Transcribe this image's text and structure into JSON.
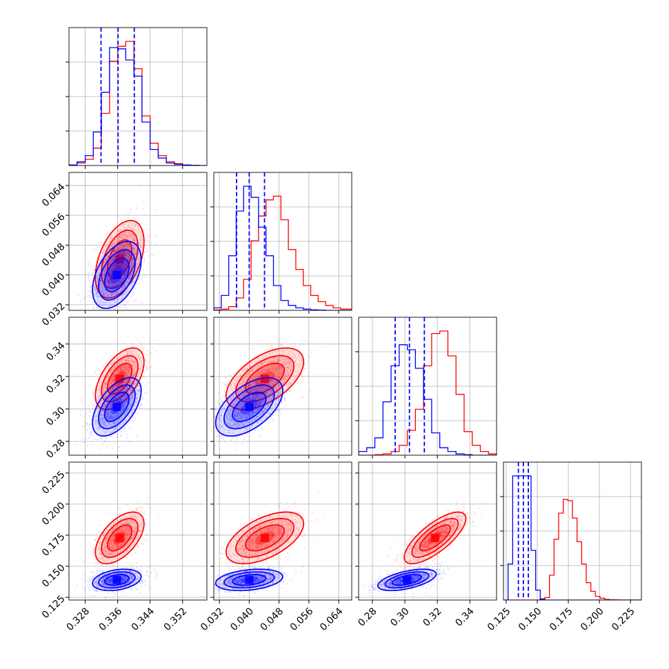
{
  "chart_data": {
    "type": "corner",
    "grid": true,
    "colors": {
      "series_a": "#ff0000",
      "series_b": "#0000ff",
      "grid": "#b0b0b0",
      "axis": "#000000"
    },
    "series": [
      {
        "color": "#ff0000"
      },
      {
        "color": "#0000ff"
      }
    ],
    "parameters": [
      {
        "range": [
          0.324,
          0.358
        ],
        "ticks": [
          "0.328",
          "0.336",
          "0.344",
          "0.352"
        ],
        "quantiles_series_b": [
          0.3319,
          0.3361,
          0.3401
        ]
      },
      {
        "range": [
          0.0305,
          0.0675
        ],
        "ticks": [
          "0.032",
          "0.040",
          "0.048",
          "0.056",
          "0.064"
        ],
        "quantiles_series_b": [
          0.0366,
          0.04,
          0.0441
        ]
      },
      {
        "range": [
          0.2715,
          0.3565
        ],
        "ticks": [
          "0.28",
          "0.30",
          "0.32",
          "0.34"
        ],
        "quantiles_series_b": [
          0.294,
          0.3028,
          0.312
        ]
      },
      {
        "range": [
          0.1228,
          0.2338
        ],
        "ticks": [
          "0.125",
          "0.150",
          "0.175",
          "0.200",
          "0.225"
        ],
        "quantiles_series_b": [
          0.1348,
          0.1388,
          0.1428
        ]
      }
    ],
    "histograms": [
      {
        "bins": [
          0.324,
          0.326,
          0.328,
          0.33,
          0.332,
          0.334,
          0.336,
          0.338,
          0.34,
          0.342,
          0.344,
          0.346,
          0.348,
          0.35,
          0.352,
          0.354,
          0.356,
          0.358
        ],
        "series_a": [
          0.5,
          2,
          5,
          14,
          42,
          84,
          96,
          100,
          78,
          40,
          18,
          8,
          3,
          1.5,
          0.5,
          0.2,
          0
        ],
        "series_b": [
          0.5,
          3,
          8,
          27,
          59,
          95,
          94,
          85,
          72,
          35,
          13,
          6,
          2,
          1,
          0.5,
          0.2,
          0
        ]
      },
      {
        "bins": [
          0.0305,
          0.0325,
          0.0345,
          0.0365,
          0.0385,
          0.0405,
          0.0425,
          0.0445,
          0.0465,
          0.0485,
          0.0505,
          0.0525,
          0.0545,
          0.0565,
          0.0585,
          0.0605,
          0.0625,
          0.0645,
          0.0675
        ],
        "series_a": [
          0.3,
          1,
          3,
          10,
          25,
          56,
          76,
          89,
          92,
          73,
          49,
          33,
          20,
          12,
          7,
          4,
          2,
          1
        ],
        "series_b": [
          2,
          12,
          44,
          80,
          100,
          91,
          67,
          44,
          20,
          8,
          4,
          2,
          1,
          0.4,
          0.2,
          0,
          0,
          0
        ]
      },
      {
        "bins": [
          0.2715,
          0.2765,
          0.2815,
          0.2865,
          0.2915,
          0.2965,
          0.3015,
          0.3065,
          0.3115,
          0.3165,
          0.3215,
          0.3265,
          0.3315,
          0.3365,
          0.3415,
          0.3465,
          0.3515,
          0.3565
        ],
        "series_a": [
          0,
          0,
          0.4,
          1,
          3,
          8,
          20,
          37,
          72,
          98,
          100,
          80,
          49,
          19,
          8,
          3,
          1
        ],
        "series_b": [
          3,
          6,
          14,
          43,
          72,
          89,
          85,
          70,
          45,
          18,
          6,
          3,
          1,
          0.4,
          0,
          0,
          0
        ]
      },
      {
        "bins": [
          0.1228,
          0.1265,
          0.1302,
          0.1339,
          0.1376,
          0.1413,
          0.145,
          0.1487,
          0.1524,
          0.1561,
          0.1598,
          0.1635,
          0.1672,
          0.1709,
          0.1746,
          0.1783,
          0.182,
          0.1857,
          0.1894,
          0.1931,
          0.1968,
          0.2005,
          0.2042,
          0.2079,
          0.2116,
          0.2153,
          0.2338
        ],
        "series_a": [
          0,
          0,
          0,
          0,
          0,
          0,
          0,
          0,
          1,
          2,
          20,
          49,
          70,
          81,
          80,
          66,
          47,
          29,
          14,
          7,
          3,
          1.5,
          0.5,
          0.2,
          0.1,
          0
        ],
        "series_b": [
          0,
          29,
          100,
          100,
          100,
          100,
          40,
          8,
          0.5,
          0,
          0,
          0,
          0,
          0,
          0,
          0,
          0,
          0,
          0,
          0,
          0,
          0,
          0,
          0,
          0,
          0
        ]
      }
    ],
    "posteriors": {
      "series_a": {
        "mean": [
          0.3365,
          0.0442,
          0.3186,
          0.1728
        ],
        "sd": [
          0.003,
          0.0052,
          0.0095,
          0.0104
        ],
        "corr": [
          [
            1,
            0.45,
            0.55,
            0.55
          ],
          [
            0.45,
            1,
            0.55,
            0.55
          ],
          [
            0.55,
            0.55,
            1,
            0.75
          ],
          [
            0.55,
            0.55,
            0.75,
            1
          ]
        ]
      },
      "series_b": {
        "mean": [
          0.3358,
          0.04,
          0.3013,
          0.139
        ],
        "sd": [
          0.003,
          0.0045,
          0.009,
          0.0043
        ],
        "corr": [
          [
            1,
            0.45,
            0.55,
            0.3
          ],
          [
            0.45,
            1,
            0.55,
            0.3
          ],
          [
            0.55,
            0.55,
            1,
            0.55
          ],
          [
            0.3,
            0.3,
            0.55,
            1
          ]
        ]
      }
    }
  }
}
